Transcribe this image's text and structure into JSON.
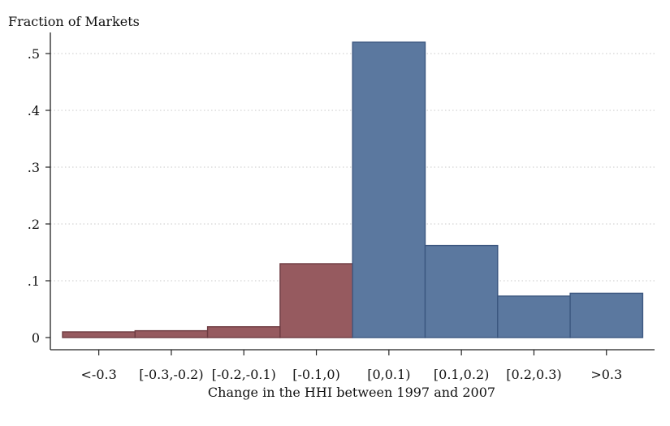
{
  "chart_data": {
    "type": "bar",
    "title": "",
    "ylabel": "Fraction of Markets",
    "xlabel": "Change in the HHI between 1997 and 2007",
    "categories": [
      "<-0.3",
      "[-0.3,-0.2)",
      "[-0.2,-0.1)",
      "[-0.1,0)",
      "[0,0.1)",
      "[0.1,0.2)",
      "[0.2,0.3)",
      ">0.3"
    ],
    "values": [
      0.01,
      0.012,
      0.019,
      0.13,
      0.52,
      0.162,
      0.073,
      0.078
    ],
    "bar_colors": [
      "#965a5f",
      "#965a5f",
      "#965a5f",
      "#965a5f",
      "#5b789f",
      "#5b789f",
      "#5b789f",
      "#5b789f"
    ],
    "bar_edge_colors": [
      "#6e3c42",
      "#6e3c42",
      "#6e3c42",
      "#6e3c42",
      "#3c5780",
      "#3c5780",
      "#3c5780",
      "#3c5780"
    ],
    "y_ticks": [
      0,
      0.1,
      0.2,
      0.3,
      0.4,
      0.5
    ],
    "y_tick_labels": [
      "0",
      ".1",
      ".2",
      ".3",
      ".4",
      ".5"
    ],
    "ylim": [
      0,
      0.55
    ],
    "grid": "horizontal dotted",
    "legend": "none"
  }
}
